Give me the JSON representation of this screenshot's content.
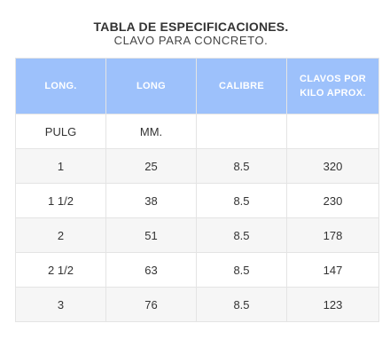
{
  "title": "TABLA DE ESPECIFICACIONES.",
  "subtitle": "CLAVO PARA CONCRETO.",
  "colors": {
    "header_bg": "#9dc1fb",
    "header_text": "#ffffff",
    "row_alt_bg": "#f6f6f6",
    "border": "#e4e4e4"
  },
  "table": {
    "headers": [
      "LONG.",
      "LONG",
      "CALIBRE",
      "CLAVOS POR KILO APROX."
    ],
    "rows": [
      [
        "PULG",
        "MM.",
        "",
        ""
      ],
      [
        "1",
        "25",
        "8.5",
        "320"
      ],
      [
        "1 1/2",
        "38",
        "8.5",
        "230"
      ],
      [
        "2",
        "51",
        "8.5",
        "178"
      ],
      [
        "2 1/2",
        "63",
        "8.5",
        "147"
      ],
      [
        "3",
        "76",
        "8.5",
        "123"
      ]
    ]
  }
}
